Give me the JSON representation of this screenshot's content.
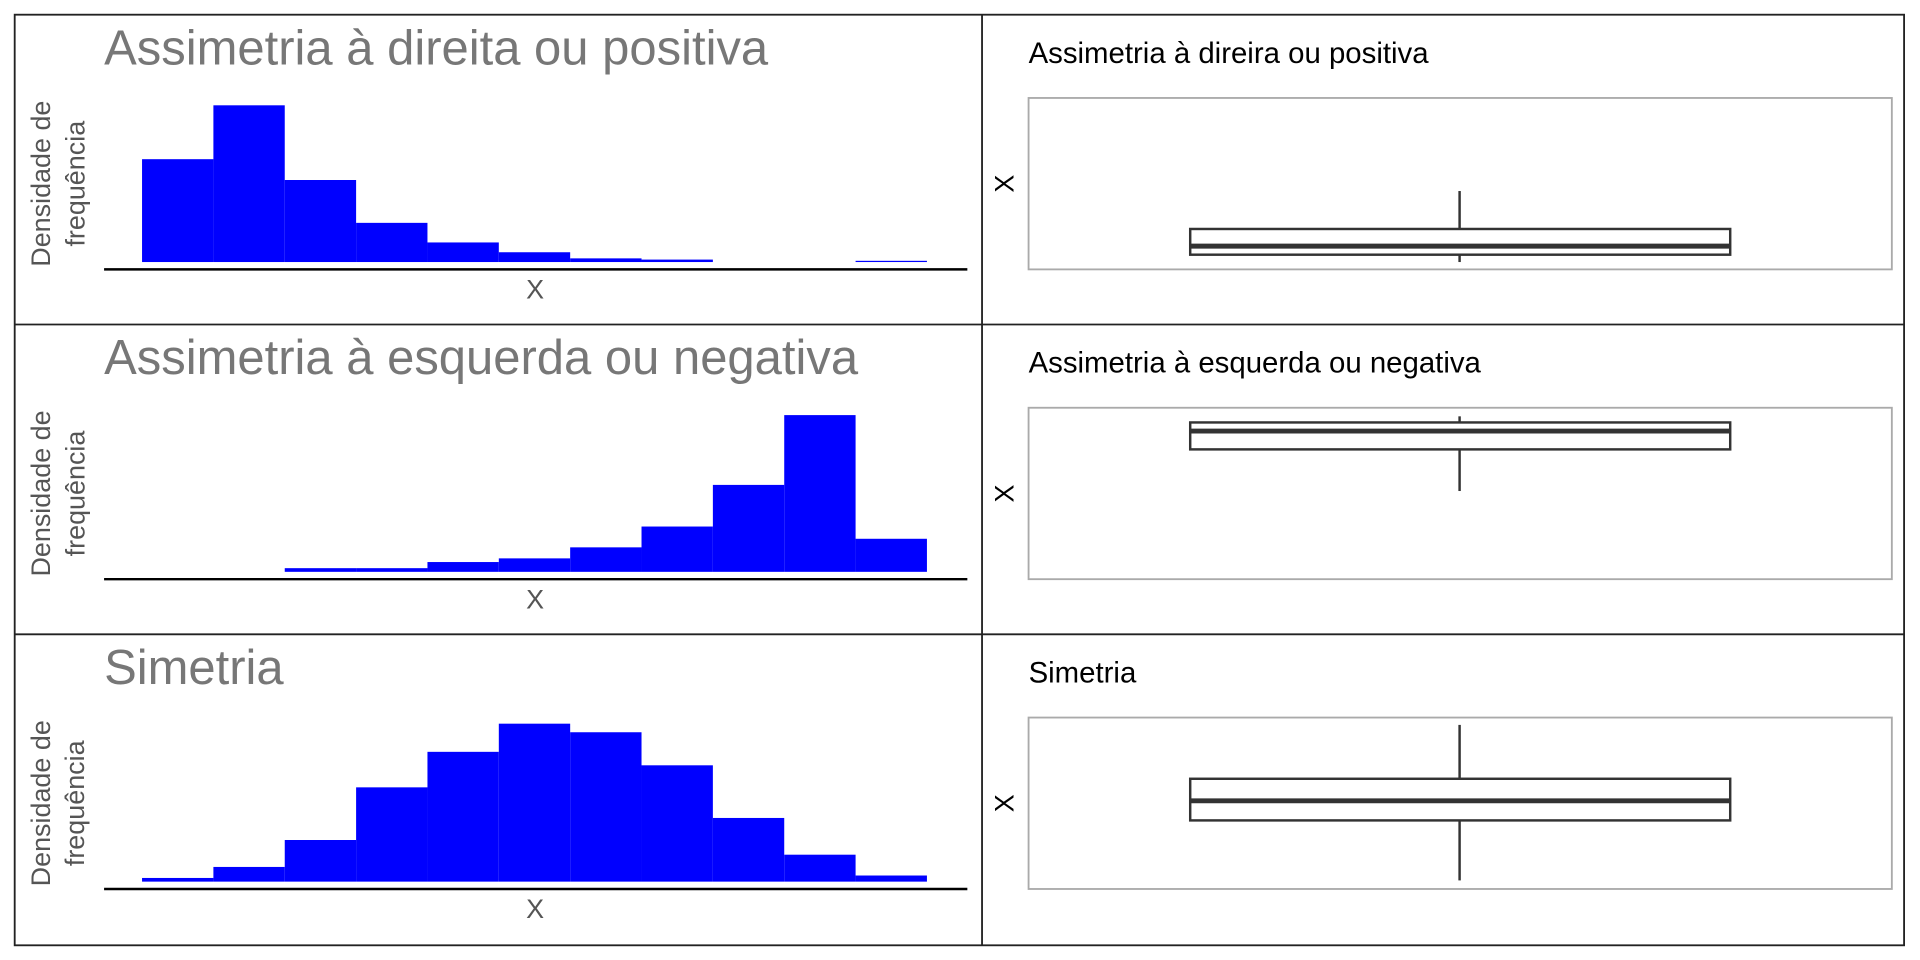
{
  "chart_data": [
    {
      "type": "histogram",
      "title": "Assimetria à direita ou positiva",
      "xlabel": "X",
      "ylabel": [
        "Densidade de",
        "frequência"
      ],
      "bins": [
        0,
        1,
        2,
        3,
        4,
        5,
        6,
        7,
        8,
        9,
        10,
        11
      ],
      "values": [
        84,
        128,
        67,
        32,
        16,
        8,
        3,
        2,
        0,
        0,
        1
      ],
      "color": "#0000ff",
      "ylim": [
        0,
        134
      ]
    },
    {
      "type": "box",
      "title": "Assimetria à direira ou positiva",
      "ylabel": "X",
      "min": 6,
      "q1": 12,
      "median": 19,
      "q3": 33,
      "max": 64,
      "ylim": [
        0,
        140
      ]
    },
    {
      "type": "histogram",
      "title": "Assimetria à esquerda ou negativa",
      "xlabel": "X",
      "ylabel": [
        "Densidade de",
        "frequência"
      ],
      "bins": [
        0,
        1,
        2,
        3,
        4,
        5,
        6,
        7,
        8,
        9,
        10,
        11
      ],
      "values": [
        0,
        0,
        3,
        3,
        8,
        11,
        20,
        37,
        71,
        128,
        27
      ],
      "color": "#0000ff",
      "ylim": [
        0,
        134
      ]
    },
    {
      "type": "box",
      "title": "Assimetria à esquerda ou negativa",
      "ylabel": "X",
      "min": 72,
      "q1": 106,
      "median": 121,
      "q3": 128,
      "max": 133,
      "ylim": [
        0,
        140
      ]
    },
    {
      "type": "histogram",
      "title": "Simetria",
      "xlabel": "X",
      "ylabel": [
        "Densidade de",
        "frequência"
      ],
      "bins": [
        0,
        1,
        2,
        3,
        4,
        5,
        6,
        7,
        8,
        9,
        10,
        11
      ],
      "values": [
        3,
        12,
        34,
        77,
        106,
        129,
        122,
        95,
        52,
        22,
        5
      ],
      "color": "#0000ff",
      "ylim": [
        0,
        134
      ]
    },
    {
      "type": "box",
      "title": "Simetria",
      "ylabel": "X",
      "min": 7,
      "q1": 56,
      "median": 72,
      "q3": 90,
      "max": 134,
      "ylim": [
        0,
        140
      ]
    }
  ]
}
